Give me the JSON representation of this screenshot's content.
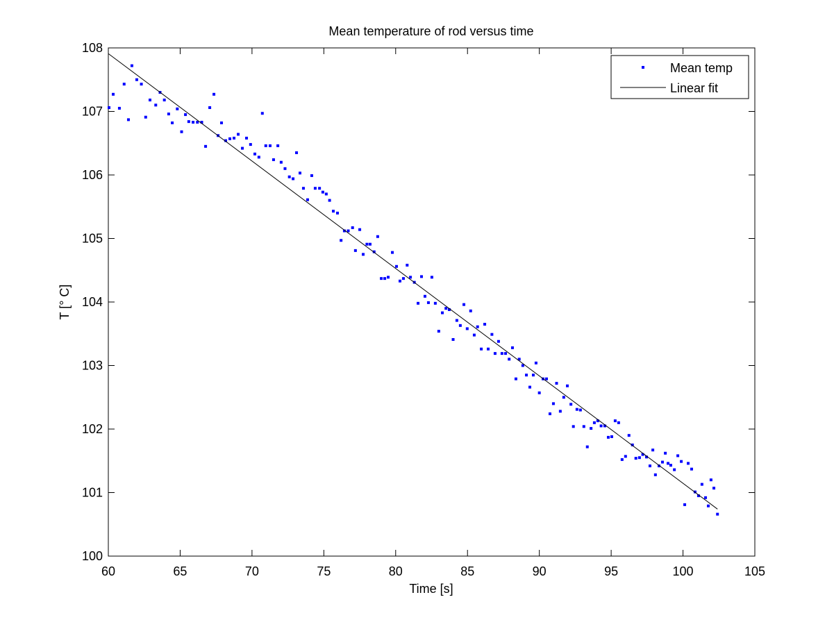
{
  "chart_data": {
    "type": "scatter",
    "title": "Mean temperature of rod versus time",
    "x_label": "Time [s]",
    "y_label": "T [° C]",
    "xlim": [
      60,
      105
    ],
    "ylim": [
      100,
      108
    ],
    "xticks": [
      60,
      65,
      70,
      75,
      80,
      85,
      90,
      95,
      100,
      105
    ],
    "yticks": [
      100,
      101,
      102,
      103,
      104,
      105,
      106,
      107,
      108
    ],
    "legend": "upper right",
    "series": [
      {
        "name": "Mean temp",
        "color": "#0000ff",
        "style": "markers",
        "x": [
          60.05,
          60.34,
          60.77,
          61.1,
          61.4,
          61.64,
          61.98,
          62.3,
          62.6,
          62.9,
          63.3,
          63.6,
          63.9,
          64.2,
          64.45,
          64.8,
          65.1,
          65.37,
          65.6,
          65.9,
          66.2,
          66.5,
          66.77,
          67.06,
          67.35,
          67.64,
          67.88,
          68.17,
          68.46,
          68.75,
          69.04,
          69.33,
          69.62,
          69.9,
          70.2,
          70.48,
          70.72,
          70.96,
          71.26,
          71.5,
          71.8,
          72.03,
          72.3,
          72.6,
          72.86,
          73.1,
          73.34,
          73.58,
          73.87,
          74.16,
          74.4,
          74.7,
          74.93,
          75.17,
          75.4,
          75.66,
          75.95,
          76.2,
          76.43,
          76.7,
          77,
          77.2,
          77.5,
          77.74,
          78,
          78.22,
          78.5,
          78.75,
          79,
          79.24,
          79.48,
          79.77,
          80.06,
          80.3,
          80.54,
          80.8,
          81.03,
          81.3,
          81.56,
          81.8,
          82.04,
          82.28,
          82.52,
          82.76,
          83,
          83.25,
          83.5,
          83.73,
          84,
          84.26,
          84.5,
          84.75,
          84.98,
          85.22,
          85.47,
          85.7,
          85.96,
          86.2,
          86.44,
          86.7,
          86.92,
          87.16,
          87.4,
          87.65,
          87.9,
          88.13,
          88.37,
          88.6,
          88.85,
          89.1,
          89.34,
          89.58,
          89.77,
          90,
          90.26,
          90.5,
          90.74,
          90.98,
          91.2,
          91.46,
          91.7,
          91.95,
          92.2,
          92.37,
          92.62,
          92.86,
          93.1,
          93.34,
          93.6,
          93.83,
          94.07,
          94.3,
          94.56,
          94.8,
          95.04,
          95.28,
          95.52,
          95.76,
          96,
          96.24,
          96.48,
          96.72,
          96.97,
          97.2,
          97.46,
          97.7,
          97.9,
          98.08,
          98.33,
          98.57,
          98.77,
          98.96,
          99.15,
          99.4,
          99.64,
          99.88,
          100.12,
          100.36,
          100.6,
          100.84,
          101.08,
          101.32,
          101.57,
          101.76,
          101.95,
          102.15,
          102.4
        ],
        "values": [
          107.06,
          107.27,
          107.05,
          107.43,
          106.87,
          107.72,
          107.5,
          107.43,
          106.91,
          107.18,
          107.1,
          107.3,
          107.18,
          106.96,
          106.82,
          107.04,
          106.68,
          106.95,
          106.84,
          106.83,
          106.83,
          106.83,
          106.45,
          107.06,
          107.27,
          106.62,
          106.82,
          106.54,
          106.57,
          106.58,
          106.64,
          106.42,
          106.58,
          106.48,
          106.33,
          106.28,
          106.97,
          106.46,
          106.46,
          106.24,
          106.46,
          106.2,
          106.1,
          105.97,
          105.94,
          106.35,
          106.03,
          105.79,
          105.61,
          105.99,
          105.79,
          105.79,
          105.73,
          105.7,
          105.6,
          105.43,
          105.4,
          104.97,
          105.12,
          105.12,
          105.17,
          104.81,
          105.14,
          104.75,
          104.91,
          104.91,
          104.79,
          105.03,
          104.37,
          104.37,
          104.39,
          104.78,
          104.56,
          104.33,
          104.37,
          104.58,
          104.39,
          104.31,
          103.98,
          104.4,
          104.09,
          103.99,
          104.39,
          103.98,
          103.54,
          103.83,
          103.9,
          103.88,
          103.41,
          103.71,
          103.63,
          103.96,
          103.58,
          103.86,
          103.48,
          103.61,
          103.26,
          103.65,
          103.26,
          103.49,
          103.19,
          103.38,
          103.19,
          103.19,
          103.1,
          103.28,
          102.79,
          103.1,
          103,
          102.85,
          102.66,
          102.85,
          103.04,
          102.57,
          102.79,
          102.79,
          102.24,
          102.4,
          102.72,
          102.28,
          102.5,
          102.68,
          102.39,
          102.04,
          102.31,
          102.3,
          102.04,
          101.72,
          102.01,
          102.1,
          102.13,
          102.05,
          102.05,
          101.87,
          101.88,
          102.13,
          102.1,
          101.52,
          101.57,
          101.9,
          101.75,
          101.54,
          101.55,
          101.6,
          101.56,
          101.42,
          101.67,
          101.28,
          101.42,
          101.48,
          101.62,
          101.46,
          101.43,
          101.36,
          101.58,
          101.49,
          100.81,
          101.46,
          101.37,
          101.01,
          100.95,
          101.13,
          100.92,
          100.79,
          101.2,
          101.07,
          100.66
        ]
      },
      {
        "name": "Linear fit",
        "color": "#000000",
        "style": "line",
        "x": [
          60,
          102.4
        ],
        "values": [
          107.91,
          100.74
        ]
      }
    ]
  }
}
